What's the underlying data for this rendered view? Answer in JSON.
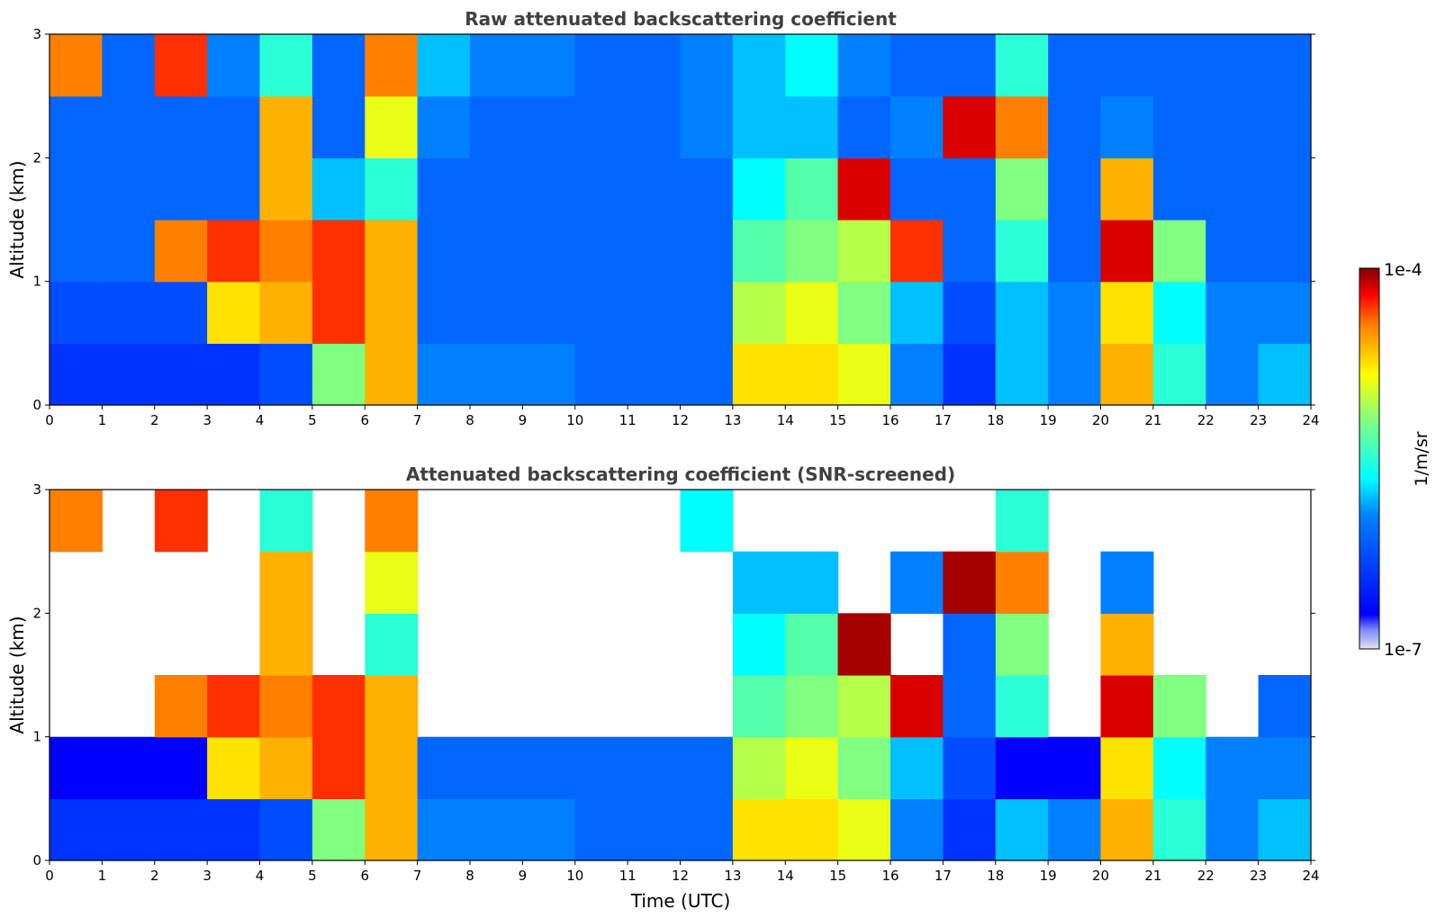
{
  "chart_data": {
    "type": "heatmap",
    "colormap": "jet",
    "missing_color": "#ffffff",
    "colorbar": {
      "min_label": "1e-7",
      "max_label": "1e-4",
      "label": "1/m/sr",
      "range": [
        1e-07,
        0.0001
      ],
      "scale": "log"
    },
    "xlabel": "Time (UTC)",
    "x_ticks": [
      "0",
      "1",
      "2",
      "3",
      "4",
      "5",
      "6",
      "7",
      "8",
      "9",
      "10",
      "11",
      "12",
      "13",
      "14",
      "15",
      "16",
      "17",
      "18",
      "19",
      "20",
      "21",
      "22",
      "23",
      "24"
    ],
    "y_ticks": [
      "0",
      "1",
      "2",
      "3"
    ],
    "xlim": [
      0,
      24
    ],
    "ylim": [
      0,
      3
    ],
    "panels": [
      {
        "id": "raw",
        "title": "Raw attenuated backscattering coefficient",
        "ylabel": "Altitude (km)",
        "x_grid": [
          0,
          1,
          2,
          3,
          4,
          5,
          6,
          7,
          8,
          9,
          10,
          11,
          12,
          13,
          14,
          15,
          16,
          17,
          18,
          19,
          20,
          21,
          22,
          23,
          24
        ],
        "y_grid": [
          0.0,
          0.5,
          1.0,
          1.5,
          2.0,
          2.5,
          3.0
        ],
        "values": [
          [
            0.2,
            0.2,
            0.2,
            0.2,
            0.25,
            0.6,
            0.8,
            0.35,
            0.35,
            0.35,
            0.3,
            0.3,
            0.3,
            0.75,
            0.75,
            0.7,
            0.35,
            0.2,
            0.4,
            0.35,
            0.8,
            0.5,
            0.35,
            0.4,
            null
          ],
          [
            0.25,
            0.25,
            0.25,
            0.75,
            0.8,
            0.9,
            0.8,
            0.3,
            0.3,
            0.3,
            0.3,
            0.3,
            0.3,
            0.65,
            0.7,
            0.6,
            0.4,
            0.25,
            0.4,
            0.35,
            0.75,
            0.45,
            0.35,
            0.35,
            null
          ],
          [
            0.3,
            0.3,
            0.85,
            0.9,
            0.85,
            0.9,
            0.8,
            0.3,
            0.3,
            0.3,
            0.3,
            0.3,
            0.3,
            0.55,
            0.6,
            0.65,
            0.9,
            0.3,
            0.5,
            0.3,
            0.95,
            0.6,
            0.3,
            0.3,
            null
          ],
          [
            0.3,
            0.3,
            0.3,
            0.3,
            0.8,
            0.4,
            0.5,
            0.3,
            0.3,
            0.3,
            0.3,
            0.3,
            0.3,
            0.45,
            0.55,
            0.95,
            0.3,
            0.3,
            0.6,
            0.3,
            0.8,
            0.3,
            0.3,
            0.3,
            null
          ],
          [
            0.3,
            0.3,
            0.3,
            0.3,
            0.8,
            0.3,
            0.7,
            0.35,
            0.3,
            0.3,
            0.3,
            0.3,
            0.35,
            0.4,
            0.4,
            0.3,
            0.35,
            0.95,
            0.85,
            0.3,
            0.35,
            0.3,
            0.3,
            0.3,
            null
          ],
          [
            0.85,
            0.3,
            0.9,
            0.35,
            0.5,
            0.3,
            0.85,
            0.4,
            0.35,
            0.35,
            0.3,
            0.3,
            0.35,
            0.4,
            0.45,
            0.35,
            0.3,
            0.3,
            0.5,
            0.3,
            0.3,
            0.3,
            0.3,
            0.3,
            null
          ]
        ]
      },
      {
        "id": "snr",
        "title": "Attenuated backscattering coefficient (SNR-screened)",
        "ylabel": "Altitude (km)",
        "x_grid": [
          0,
          1,
          2,
          3,
          4,
          5,
          6,
          7,
          8,
          9,
          10,
          11,
          12,
          13,
          14,
          15,
          16,
          17,
          18,
          19,
          20,
          21,
          22,
          23,
          24
        ],
        "y_grid": [
          0.0,
          0.5,
          1.0,
          1.5,
          2.0,
          2.5,
          3.0
        ],
        "values": [
          [
            0.2,
            0.2,
            0.2,
            0.2,
            0.25,
            0.6,
            0.8,
            0.35,
            0.35,
            0.35,
            0.3,
            0.3,
            0.3,
            0.75,
            0.75,
            0.7,
            0.35,
            0.2,
            0.4,
            0.35,
            0.8,
            0.5,
            0.35,
            0.4,
            null
          ],
          [
            0.1,
            0.1,
            0.1,
            0.75,
            0.8,
            0.9,
            0.8,
            0.3,
            0.3,
            0.3,
            0.3,
            0.3,
            0.3,
            0.65,
            0.7,
            0.6,
            0.4,
            0.25,
            0.1,
            0.1,
            0.75,
            0.45,
            0.35,
            0.35,
            null
          ],
          [
            null,
            null,
            0.85,
            0.9,
            0.85,
            0.9,
            0.8,
            null,
            null,
            null,
            null,
            null,
            null,
            0.55,
            0.6,
            0.65,
            0.95,
            0.3,
            0.5,
            null,
            0.95,
            0.6,
            null,
            0.3,
            null
          ],
          [
            null,
            null,
            null,
            null,
            0.8,
            null,
            0.5,
            null,
            null,
            null,
            null,
            null,
            null,
            0.45,
            0.55,
            0.98,
            null,
            0.3,
            0.6,
            null,
            0.8,
            null,
            null,
            null,
            null
          ],
          [
            null,
            null,
            null,
            null,
            0.8,
            null,
            0.7,
            null,
            null,
            null,
            null,
            null,
            null,
            0.4,
            0.4,
            null,
            0.35,
            0.98,
            0.85,
            null,
            0.35,
            null,
            null,
            null,
            null
          ],
          [
            0.85,
            null,
            0.9,
            null,
            0.5,
            null,
            0.85,
            null,
            null,
            null,
            null,
            null,
            0.45,
            null,
            null,
            null,
            null,
            null,
            0.5,
            null,
            null,
            null,
            null,
            null,
            null
          ]
        ]
      }
    ]
  }
}
